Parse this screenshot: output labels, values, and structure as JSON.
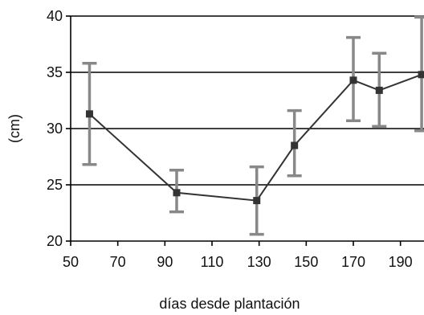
{
  "chart_data": {
    "type": "line",
    "title": "",
    "xlabel": "días desde plantación",
    "ylabel": "(cm)",
    "xlim": [
      50,
      200
    ],
    "ylim": [
      20,
      40
    ],
    "x_ticks": [
      "50",
      "70",
      "90",
      "110",
      "130",
      "150",
      "170",
      "190"
    ],
    "y_ticks": [
      "20",
      "25",
      "30",
      "35",
      "40"
    ],
    "gridlines_y": [
      25,
      30,
      35,
      40
    ],
    "grid": "horizontal",
    "legend": "none",
    "series": [
      {
        "x": [
          58,
          95,
          129,
          145,
          170,
          181,
          199
        ],
        "y": [
          31.3,
          24.3,
          23.6,
          28.5,
          34.3,
          33.4,
          34.8
        ],
        "err_low": [
          26.8,
          22.6,
          20.6,
          25.8,
          30.7,
          30.2,
          29.8
        ],
        "err_high": [
          35.8,
          26.3,
          26.6,
          31.6,
          38.1,
          36.7,
          39.9
        ]
      }
    ],
    "colors": {
      "line": "#333333",
      "marker": "#333333",
      "errorbar": "#888888",
      "grid": "#000000",
      "axis": "#000000"
    }
  }
}
